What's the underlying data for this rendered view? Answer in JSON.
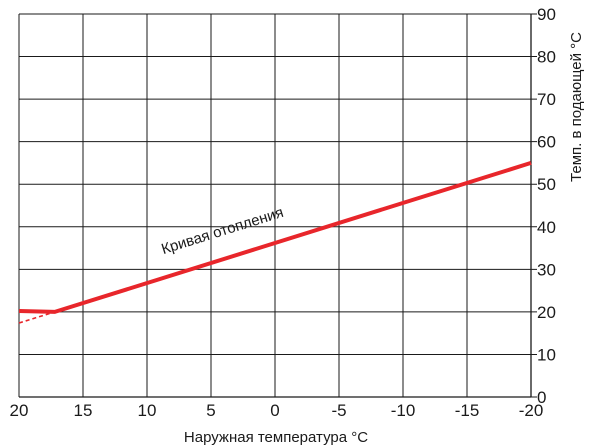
{
  "chart_data": {
    "type": "line",
    "xlabel": "Наружная температура  °C",
    "ylabel": "Темп. в подающей °C",
    "xlim": [
      20,
      -20
    ],
    "ylim": [
      0,
      90
    ],
    "x_ticks": [
      "20",
      "15",
      "10",
      "5",
      "0",
      "-5",
      "-10",
      "-15",
      "-20"
    ],
    "y_ticks": [
      "0",
      "10",
      "20",
      "30",
      "40",
      "50",
      "60",
      "70",
      "80",
      "90"
    ],
    "grid": true,
    "series": [
      {
        "name": "Кривая отопления",
        "color": "#e8262b",
        "style": "solid",
        "x": [
          20,
          17.2,
          -20
        ],
        "y": [
          20.2,
          20.0,
          55.0
        ]
      },
      {
        "color": "#e8262b",
        "style": "dashed",
        "x": [
          20,
          17.2
        ],
        "y": [
          17.4,
          20.0
        ]
      }
    ],
    "annotation": {
      "text": "Кривая отопления",
      "x": 4,
      "y": 38
    }
  }
}
